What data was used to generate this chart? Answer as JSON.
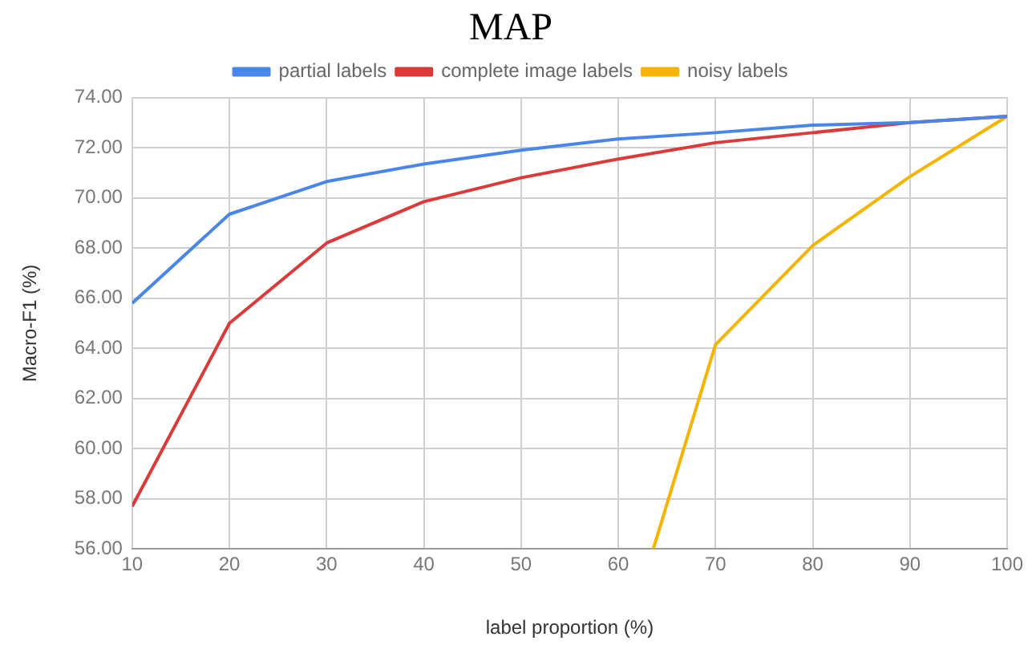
{
  "chart_data": {
    "type": "line",
    "title": "MAP",
    "xlabel": "label proportion (%)",
    "ylabel": "Macro-F1 (%)",
    "x": [
      10,
      20,
      30,
      40,
      50,
      60,
      70,
      80,
      90,
      100
    ],
    "series": [
      {
        "name": "partial labels",
        "color": "#4a86e8",
        "values": [
          65.8,
          69.35,
          70.65,
          71.35,
          71.9,
          72.35,
          72.6,
          72.9,
          73.0,
          73.25
        ]
      },
      {
        "name": "complete image labels",
        "color": "#db3a3a",
        "values": [
          57.7,
          65.0,
          68.2,
          69.85,
          70.8,
          71.55,
          72.2,
          72.6,
          73.0,
          73.25
        ]
      },
      {
        "name": "noisy labels",
        "color": "#f4b400",
        "x": [
          63.6,
          70,
          80,
          90,
          100
        ],
        "values": [
          56,
          64.15,
          68.1,
          70.85,
          73.25
        ]
      }
    ],
    "xlim": [
      10,
      100
    ],
    "xticks": [
      10,
      20,
      30,
      40,
      50,
      60,
      70,
      80,
      90,
      100
    ],
    "ylim": [
      56,
      74
    ],
    "yticks": [
      {
        "value": 56,
        "label": "56.00"
      },
      {
        "value": 58,
        "label": "58.00"
      },
      {
        "value": 60,
        "label": "60.00"
      },
      {
        "value": 62,
        "label": "62.00"
      },
      {
        "value": 64,
        "label": "64.00"
      },
      {
        "value": 66,
        "label": "66.00"
      },
      {
        "value": 68,
        "label": "68.00"
      },
      {
        "value": 70,
        "label": "70.00"
      },
      {
        "value": 72,
        "label": "72.00"
      },
      {
        "value": 74,
        "label": "74.00"
      }
    ],
    "grid": true,
    "legend": "top",
    "marker": "none",
    "line_style": "solid"
  }
}
